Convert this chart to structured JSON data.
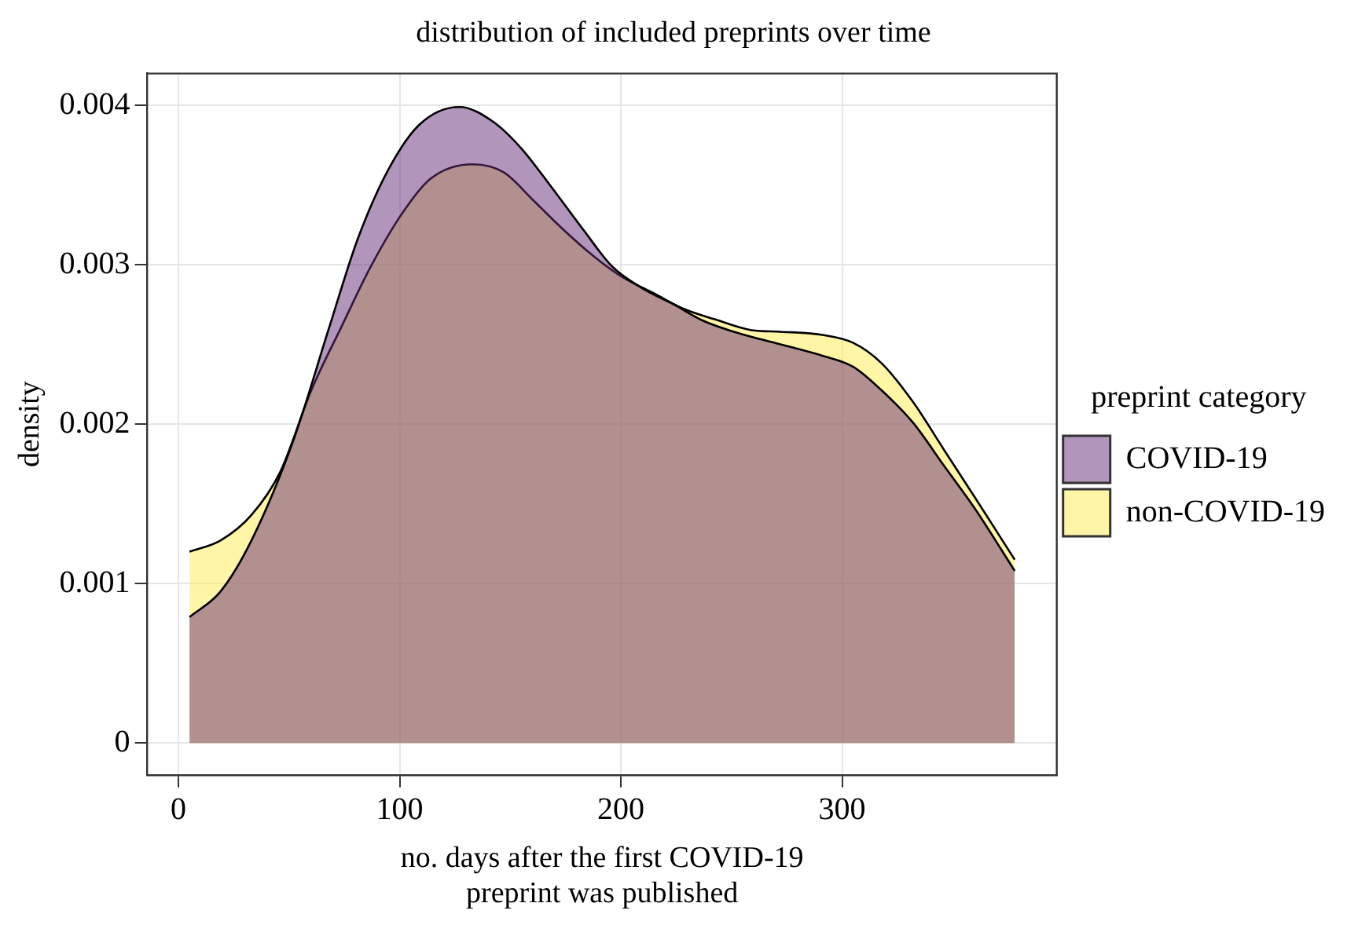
{
  "chart_data": {
    "type": "area",
    "title": "distribution of included preprints over time",
    "xlabel": "no. days after the first COVID-19\npreprint was published",
    "ylabel": "density",
    "legend_title": "preprint category",
    "series": [
      {
        "name": "COVID-19",
        "color": "#632b77",
        "x": [
          5,
          19,
          33,
          52,
          68,
          81,
          95,
          109,
          127,
          142,
          155,
          169,
          183,
          196,
          210,
          224,
          237,
          251,
          264,
          278,
          291,
          305,
          318,
          332,
          346,
          360,
          378
        ],
        "values": [
          0.00079,
          0.00095,
          0.00127,
          0.0019,
          0.0026,
          0.00316,
          0.0036,
          0.00388,
          0.00399,
          0.0039,
          0.00373,
          0.00348,
          0.00322,
          0.00299,
          0.00285,
          0.00275,
          0.00265,
          0.00258,
          0.00253,
          0.00248,
          0.00243,
          0.00236,
          0.00221,
          0.00201,
          0.00174,
          0.00147,
          0.00108
        ]
      },
      {
        "name": "non-COVID-19",
        "color": "#ffeb4d",
        "x": [
          5,
          19,
          33,
          46,
          60,
          74,
          87,
          101,
          114,
          133,
          147,
          160,
          174,
          188,
          201,
          215,
          229,
          242,
          259,
          272,
          291,
          305,
          318,
          332,
          346,
          360,
          378
        ],
        "values": [
          0.0012,
          0.00127,
          0.00143,
          0.0017,
          0.00221,
          0.00262,
          0.00299,
          0.00332,
          0.00354,
          0.00363,
          0.00358,
          0.00341,
          0.00322,
          0.00305,
          0.00292,
          0.00282,
          0.00272,
          0.00266,
          0.00259,
          0.00258,
          0.00256,
          0.00251,
          0.00238,
          0.00214,
          0.00184,
          0.00154,
          0.00115
        ]
      }
    ],
    "xlim": [
      -14,
      397
    ],
    "xticks": [
      0,
      100,
      200,
      300
    ],
    "ylim": [
      -0.0002,
      0.0042
    ],
    "yticks": [
      0,
      0.001,
      0.002,
      0.003,
      0.004
    ],
    "grid": true,
    "legend": "right"
  }
}
